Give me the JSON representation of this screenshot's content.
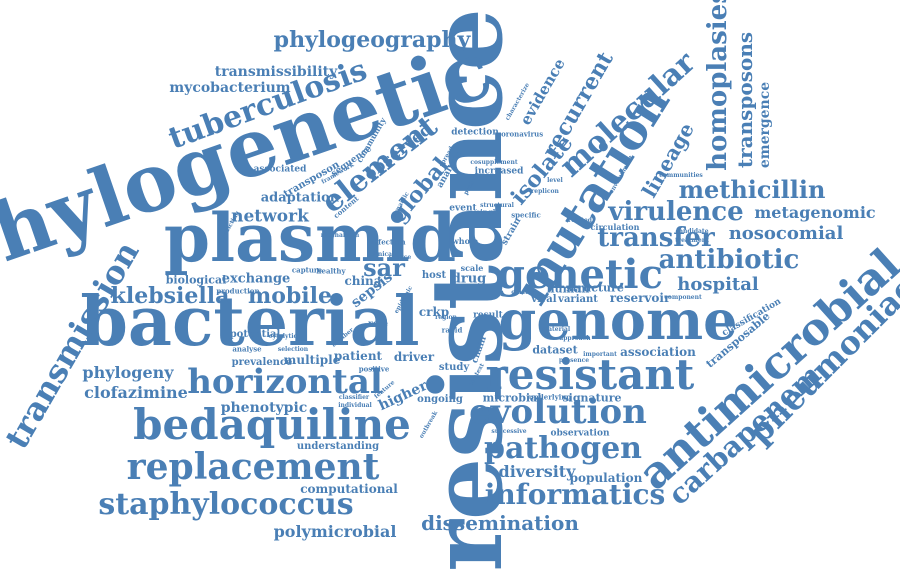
{
  "text_color": "#4a7fb5",
  "background": "#ffffff",
  "words": [
    {
      "text": "resistance"
    },
    {
      "text": "phylogenetic"
    },
    {
      "text": "bacterial"
    },
    {
      "text": "plasmid"
    },
    {
      "text": "genome"
    },
    {
      "text": "mutation"
    },
    {
      "text": "antimicrobial"
    },
    {
      "text": "resistant"
    },
    {
      "text": "bedaquiline"
    },
    {
      "text": "genetic"
    },
    {
      "text": "horizontal"
    },
    {
      "text": "evolution"
    },
    {
      "text": "replacement"
    },
    {
      "text": "staphylococcus"
    },
    {
      "text": "pathogen"
    },
    {
      "text": "informatics"
    },
    {
      "text": "pneumoniae"
    },
    {
      "text": "transmission"
    },
    {
      "text": "tuberculosis"
    },
    {
      "text": "element"
    },
    {
      "text": "molecular"
    },
    {
      "text": "carbapenem"
    },
    {
      "text": "phylogeography"
    },
    {
      "text": "homoplasies"
    },
    {
      "text": "virulence"
    },
    {
      "text": "transfer"
    },
    {
      "text": "methicillin"
    },
    {
      "text": "antibiotic"
    },
    {
      "text": "klebsiella"
    },
    {
      "text": "dissemination"
    },
    {
      "text": "recurrent"
    },
    {
      "text": "transposons"
    },
    {
      "text": "lineage"
    },
    {
      "text": "mobile"
    },
    {
      "text": "isolate"
    },
    {
      "text": "global"
    },
    {
      "text": "nosocomial"
    },
    {
      "text": "hospital"
    },
    {
      "text": "metagenomic"
    },
    {
      "text": "network"
    },
    {
      "text": "observed"
    },
    {
      "text": "polymicrobial"
    },
    {
      "text": "transmissibility"
    },
    {
      "text": "mycobacterium"
    },
    {
      "text": "phylogeny"
    },
    {
      "text": "clofazimine"
    },
    {
      "text": "phenotypic"
    },
    {
      "text": "diversity"
    },
    {
      "text": "population"
    },
    {
      "text": "computational"
    },
    {
      "text": "evidence"
    },
    {
      "text": "emergence"
    },
    {
      "text": "sar"
    },
    {
      "text": "exchange"
    },
    {
      "text": "adaptation"
    },
    {
      "text": "association"
    },
    {
      "text": "transposable"
    },
    {
      "text": "reservoir"
    },
    {
      "text": "structure"
    },
    {
      "text": "human"
    },
    {
      "text": "sepsis"
    },
    {
      "text": "crkp"
    },
    {
      "text": "driver"
    },
    {
      "text": "multiple"
    },
    {
      "text": "patient"
    },
    {
      "text": "higher"
    },
    {
      "text": "drug"
    },
    {
      "text": "microbial"
    },
    {
      "text": "signature"
    },
    {
      "text": "ongoing"
    },
    {
      "text": "dataset"
    },
    {
      "text": "understanding"
    },
    {
      "text": "observation"
    },
    {
      "text": "china"
    },
    {
      "text": "biological"
    },
    {
      "text": "prevalence"
    },
    {
      "text": "potential"
    },
    {
      "text": "variant"
    },
    {
      "text": "viral"
    },
    {
      "text": "study"
    },
    {
      "text": "classification"
    },
    {
      "text": "detection"
    },
    {
      "text": "increased"
    },
    {
      "text": "transposon"
    },
    {
      "text": "associated"
    },
    {
      "text": "sequence"
    },
    {
      "text": "community"
    },
    {
      "text": "analysis"
    },
    {
      "text": "host"
    },
    {
      "text": "event"
    },
    {
      "text": "circulation"
    },
    {
      "text": "chain"
    },
    {
      "text": "result"
    },
    {
      "text": "scale"
    },
    {
      "text": "whole"
    },
    {
      "text": "strain"
    },
    {
      "text": "capture"
    },
    {
      "text": "healthy"
    },
    {
      "text": "production"
    },
    {
      "text": "role"
    },
    {
      "text": "material"
    },
    {
      "text": "underlying"
    },
    {
      "text": "successive"
    },
    {
      "text": "single"
    },
    {
      "text": "specific"
    },
    {
      "text": "content"
    },
    {
      "text": "infection"
    },
    {
      "text": "coronavirus"
    },
    {
      "text": "rapid"
    },
    {
      "text": "region"
    },
    {
      "text": "analyse"
    },
    {
      "text": "positive"
    },
    {
      "text": "selection"
    },
    {
      "text": "component"
    },
    {
      "text": "important"
    },
    {
      "text": "candidate"
    },
    {
      "text": "treatment"
    },
    {
      "text": "environment"
    },
    {
      "text": "communities"
    },
    {
      "text": "cosupplement"
    },
    {
      "text": "characterize"
    },
    {
      "text": "outbreak"
    },
    {
      "text": "framework"
    },
    {
      "text": "predicting"
    },
    {
      "text": "mechanism"
    },
    {
      "text": "approach"
    },
    {
      "text": "cytolytic"
    },
    {
      "text": "number"
    },
    {
      "text": "feature"
    },
    {
      "text": "classifier"
    },
    {
      "text": "individual"
    },
    {
      "text": "clinical"
    },
    {
      "text": "source"
    },
    {
      "text": "dynamic"
    },
    {
      "text": "protein"
    },
    {
      "text": "replicon"
    },
    {
      "text": "structural"
    },
    {
      "text": "epidemic"
    },
    {
      "text": "related"
    },
    {
      "text": "presence"
    },
    {
      "text": "cluster"
    },
    {
      "text": "context"
    },
    {
      "text": "spread"
    },
    {
      "text": "level"
    }
  ]
}
